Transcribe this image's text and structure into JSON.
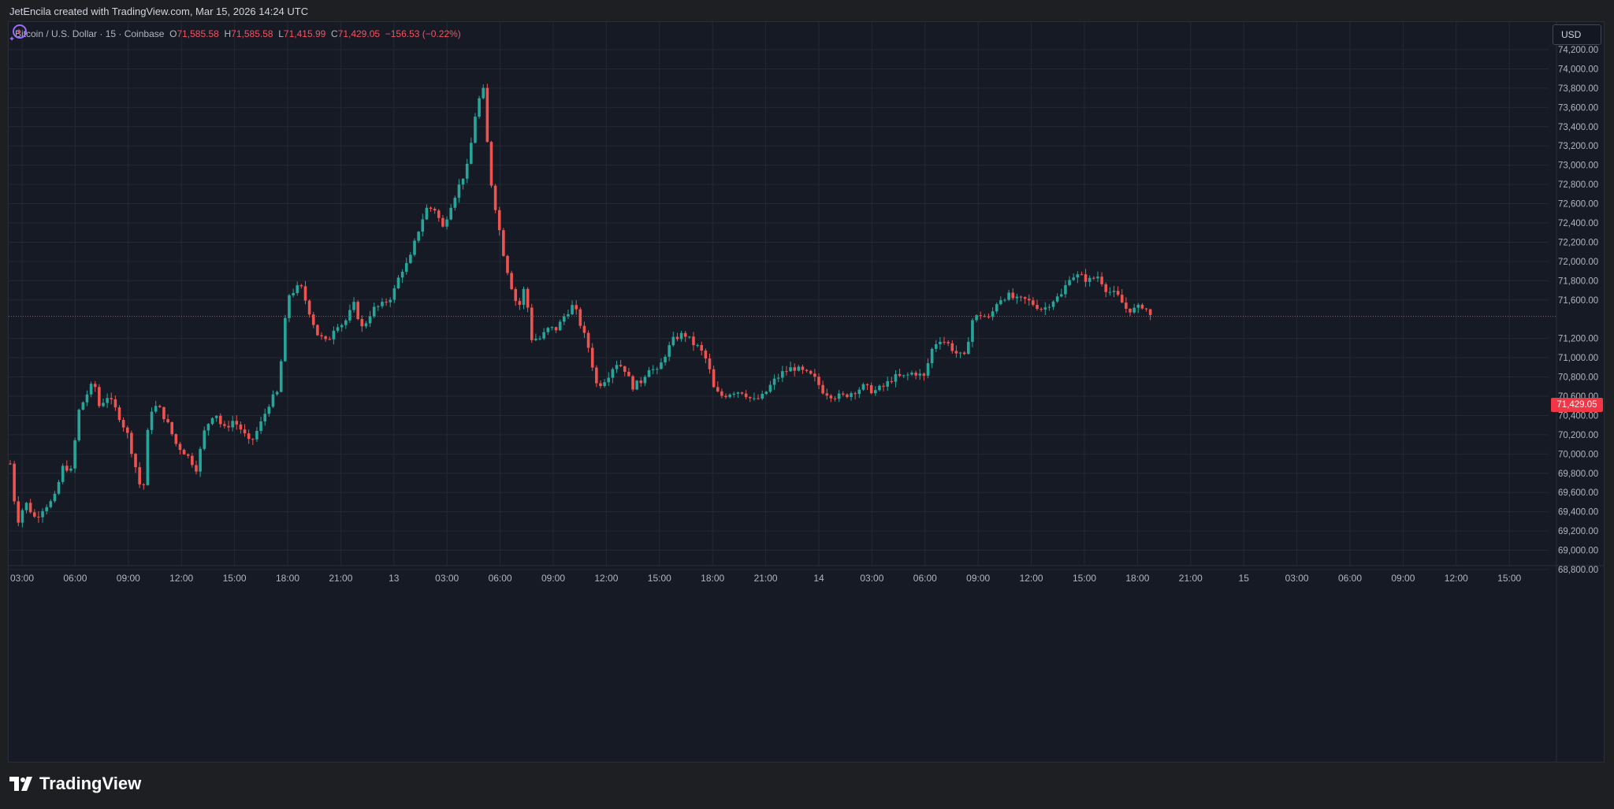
{
  "caption": "JetEncila created with TradingView.com, Mar 15, 2026 14:24 UTC",
  "legend": {
    "symbol": "Bitcoin / U.S. Dollar · 15 · Coinbase",
    "open_label": "O",
    "open": "71,585.58",
    "high_label": "H",
    "high": "71,585.58",
    "low_label": "L",
    "low": "71,415.99",
    "close_label": "C",
    "close": "71,429.05",
    "change": "−156.53 (−0.22%)"
  },
  "currency": "USD",
  "last_price_label": "71,429.05",
  "brand": "TradingView",
  "icons": [
    "tradingview-logo-icon",
    "assistant-sparkle-icon"
  ],
  "colors": {
    "up": "#26a69a",
    "down": "#ef5350",
    "background": "#161a25",
    "grid": "#242833",
    "text": "#b2b5be",
    "last_price": "#f23645"
  },
  "chart_data": {
    "type": "candlestick",
    "interval": "15",
    "exchange": "Coinbase",
    "ylim": [
      68800,
      74200
    ],
    "y_ticks": [
      "74,200.00",
      "74,000.00",
      "73,800.00",
      "73,600.00",
      "73,400.00",
      "73,200.00",
      "73,000.00",
      "72,800.00",
      "72,600.00",
      "72,400.00",
      "72,200.00",
      "72,000.00",
      "71,800.00",
      "71,600.00",
      "71,200.00",
      "71,000.00",
      "70,800.00",
      "70,600.00",
      "70,400.00",
      "70,200.00",
      "70,000.00",
      "69,800.00",
      "69,600.00",
      "69,400.00",
      "69,200.00",
      "69,000.00",
      "68,800.00"
    ],
    "x_ticks": [
      "03:00",
      "06:00",
      "09:00",
      "12:00",
      "15:00",
      "18:00",
      "21:00",
      "13",
      "03:00",
      "06:00",
      "09:00",
      "12:00",
      "15:00",
      "18:00",
      "21:00",
      "14",
      "03:00",
      "06:00",
      "09:00",
      "12:00",
      "15:00",
      "18:00",
      "21:00",
      "15",
      "03:00",
      "06:00",
      "09:00",
      "12:00",
      "15:00"
    ],
    "last_price": 71429.05,
    "grid": true,
    "price_path": [
      [
        0,
        69900
      ],
      [
        8,
        69280
      ],
      [
        18,
        69500
      ],
      [
        30,
        69330
      ],
      [
        40,
        69450
      ],
      [
        52,
        69520
      ],
      [
        64,
        69900
      ],
      [
        72,
        69800
      ],
      [
        82,
        70450
      ],
      [
        90,
        70600
      ],
      [
        100,
        70750
      ],
      [
        106,
        70500
      ],
      [
        116,
        70600
      ],
      [
        128,
        70430
      ],
      [
        140,
        70200
      ],
      [
        150,
        69850
      ],
      [
        158,
        69550
      ],
      [
        166,
        70450
      ],
      [
        176,
        70500
      ],
      [
        186,
        70350
      ],
      [
        198,
        70100
      ],
      [
        210,
        70000
      ],
      [
        222,
        69850
      ],
      [
        232,
        70250
      ],
      [
        244,
        70450
      ],
      [
        254,
        70250
      ],
      [
        266,
        70350
      ],
      [
        276,
        70250
      ],
      [
        286,
        70100
      ],
      [
        298,
        70300
      ],
      [
        310,
        70550
      ],
      [
        320,
        70650
      ],
      [
        326,
        71250
      ],
      [
        332,
        71650
      ],
      [
        346,
        71750
      ],
      [
        356,
        71500
      ],
      [
        366,
        71250
      ],
      [
        378,
        71150
      ],
      [
        388,
        71350
      ],
      [
        398,
        71350
      ],
      [
        410,
        71550
      ],
      [
        420,
        71300
      ],
      [
        432,
        71500
      ],
      [
        444,
        71550
      ],
      [
        456,
        71650
      ],
      [
        466,
        71900
      ],
      [
        476,
        72000
      ],
      [
        486,
        72300
      ],
      [
        496,
        72550
      ],
      [
        506,
        72550
      ],
      [
        516,
        72350
      ],
      [
        526,
        72600
      ],
      [
        536,
        72800
      ],
      [
        546,
        73000
      ],
      [
        556,
        73600
      ],
      [
        564,
        73800
      ],
      [
        572,
        72900
      ],
      [
        580,
        72500
      ],
      [
        588,
        72100
      ],
      [
        596,
        71800
      ],
      [
        606,
        71500
      ],
      [
        614,
        71750
      ],
      [
        622,
        71200
      ],
      [
        632,
        71200
      ],
      [
        642,
        71300
      ],
      [
        652,
        71300
      ],
      [
        662,
        71450
      ],
      [
        672,
        71550
      ],
      [
        682,
        71300
      ],
      [
        690,
        71100
      ],
      [
        700,
        70700
      ],
      [
        712,
        70800
      ],
      [
        722,
        70950
      ],
      [
        732,
        70900
      ],
      [
        742,
        70700
      ],
      [
        752,
        70750
      ],
      [
        762,
        70900
      ],
      [
        772,
        70850
      ],
      [
        782,
        71050
      ],
      [
        792,
        71200
      ],
      [
        804,
        71250
      ],
      [
        814,
        71150
      ],
      [
        822,
        71100
      ],
      [
        832,
        70950
      ],
      [
        840,
        70650
      ],
      [
        850,
        70600
      ],
      [
        862,
        70650
      ],
      [
        874,
        70650
      ],
      [
        886,
        70550
      ],
      [
        898,
        70600
      ],
      [
        910,
        70750
      ],
      [
        922,
        70850
      ],
      [
        934,
        70900
      ],
      [
        946,
        70850
      ],
      [
        958,
        70800
      ],
      [
        970,
        70650
      ],
      [
        982,
        70600
      ],
      [
        994,
        70600
      ],
      [
        1006,
        70650
      ],
      [
        1018,
        70700
      ],
      [
        1030,
        70650
      ],
      [
        1042,
        70700
      ],
      [
        1054,
        70800
      ],
      [
        1066,
        70800
      ],
      [
        1078,
        70850
      ],
      [
        1090,
        70800
      ],
      [
        1100,
        71100
      ],
      [
        1108,
        71200
      ],
      [
        1118,
        71150
      ],
      [
        1128,
        71050
      ],
      [
        1138,
        71000
      ],
      [
        1148,
        71400
      ],
      [
        1158,
        71450
      ],
      [
        1168,
        71400
      ],
      [
        1178,
        71600
      ],
      [
        1190,
        71650
      ],
      [
        1200,
        71600
      ],
      [
        1212,
        71600
      ],
      [
        1222,
        71550
      ],
      [
        1232,
        71500
      ],
      [
        1244,
        71600
      ],
      [
        1254,
        71650
      ],
      [
        1264,
        71850
      ],
      [
        1276,
        71850
      ],
      [
        1286,
        71800
      ],
      [
        1298,
        71850
      ],
      [
        1308,
        71700
      ],
      [
        1320,
        71650
      ],
      [
        1332,
        71500
      ],
      [
        1342,
        71500
      ],
      [
        1352,
        71550
      ],
      [
        1360,
        71430
      ]
    ]
  }
}
